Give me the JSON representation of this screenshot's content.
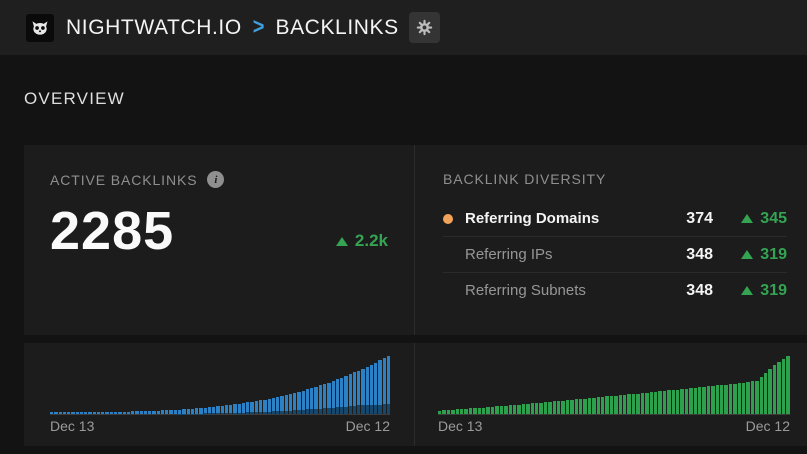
{
  "topbar": {
    "brand": "NIGHTWATCH.IO",
    "breadcrumb_separator": ">",
    "page": "BACKLINKS"
  },
  "section": {
    "title": "OVERVIEW"
  },
  "active_backlinks": {
    "label": "ACTIVE BACKLINKS",
    "info_glyph": "i",
    "value": "2285",
    "change": "2.2k",
    "change_direction": "up"
  },
  "diversity": {
    "label": "BACKLINK DIVERSITY",
    "rows": [
      {
        "label": "Referring Domains",
        "value": "374",
        "change": "345",
        "change_direction": "up",
        "active": true
      },
      {
        "label": "Referring IPs",
        "value": "348",
        "change": "319",
        "change_direction": "up",
        "active": false
      },
      {
        "label": "Referring Subnets",
        "value": "348",
        "change": "319",
        "change_direction": "up",
        "active": false
      }
    ]
  },
  "colors": {
    "accent_green": "#34a453",
    "accent_orange": "#f2a35a",
    "accent_blue": "#3f9edd",
    "bar_blue": "#2c80c4",
    "bar_blue_dark": "#16486e",
    "bar_green": "#2ca04c"
  },
  "chart_data": [
    {
      "type": "bar",
      "title": "Active backlinks over time",
      "x_start_label": "Dec 13",
      "x_end_label": "Dec 12",
      "ylim": [
        0,
        2285
      ],
      "grid": false,
      "series": [
        {
          "name": "active-backlinks",
          "color": "#2c80c4",
          "values": [
            80,
            80,
            80,
            80,
            80,
            80,
            80,
            81,
            81,
            82,
            82,
            83,
            84,
            86,
            88,
            89,
            92,
            95,
            98,
            101,
            104,
            109,
            114,
            120,
            126,
            131,
            139,
            147,
            156,
            164,
            173,
            185,
            197,
            210,
            222,
            235,
            252,
            269,
            287,
            304,
            322,
            345,
            368,
            391,
            414,
            437,
            463,
            489,
            516,
            542,
            568,
            604,
            640,
            676,
            712,
            748,
            792,
            836,
            880,
            925,
            969,
            1023,
            1077,
            1131,
            1184,
            1238,
            1302,
            1367,
            1431,
            1496,
            1560,
            1636,
            1712,
            1788,
            1864,
            1940,
            2026,
            2112,
            2199,
            2285
          ]
        },
        {
          "name": "secondary-backlinks",
          "color": "#16486e",
          "values": [
            0,
            0,
            0,
            0,
            0,
            0,
            0,
            0,
            0,
            0,
            0,
            0,
            0,
            0,
            0,
            0,
            0,
            0,
            0,
            0,
            0,
            0,
            0,
            0,
            0,
            0,
            0,
            0,
            0,
            0,
            8,
            10,
            12,
            14,
            16,
            18,
            21,
            24,
            27,
            30,
            34,
            38,
            42,
            47,
            52,
            57,
            63,
            69,
            75,
            82,
            89,
            96,
            104,
            112,
            120,
            129,
            138,
            148,
            158,
            168,
            179,
            190,
            202,
            214,
            226,
            239,
            252,
            266,
            280,
            294,
            309,
            324,
            340,
            350,
            356,
            362,
            368,
            374,
            380,
            385
          ]
        }
      ]
    },
    {
      "type": "bar",
      "title": "Referring domains over time",
      "x_start_label": "Dec 13",
      "x_end_label": "Dec 12",
      "ylim": [
        0,
        374
      ],
      "grid": false,
      "series": [
        {
          "name": "referring-domains",
          "color": "#2ca04c",
          "values": [
            22,
            24,
            26,
            28,
            30,
            32,
            34,
            36,
            38,
            40,
            42,
            44,
            46,
            49,
            51,
            54,
            56,
            58,
            61,
            63,
            66,
            68,
            71,
            73,
            76,
            78,
            81,
            83,
            86,
            88,
            91,
            94,
            96,
            99,
            102,
            105,
            107,
            110,
            113,
            115,
            118,
            121,
            124,
            127,
            129,
            132,
            135,
            138,
            141,
            143,
            146,
            149,
            152,
            155,
            158,
            161,
            164,
            166,
            169,
            172,
            175,
            178,
            181,
            184,
            187,
            190,
            193,
            196,
            199,
            202,
            205,
            210,
            215,
            240,
            265,
            290,
            315,
            336,
            356,
            374
          ]
        }
      ]
    }
  ]
}
